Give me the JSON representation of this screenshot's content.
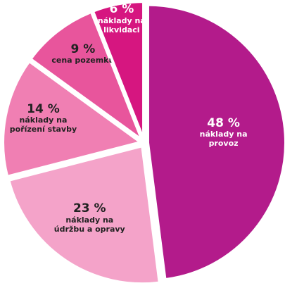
{
  "chart_data": {
    "type": "pie",
    "categories": [
      "náklady na provoz",
      "náklady na údržbu a opravy",
      "náklady na pořízení stavby",
      "cena pozemku",
      "náklady na likvidaci"
    ],
    "values": [
      48,
      23,
      14,
      9,
      6
    ],
    "value_labels": [
      "48 %",
      "23 %",
      "14 %",
      "9 %",
      "6 %"
    ],
    "colors": [
      "#b31b8b",
      "#f4a3c9",
      "#f07fb3",
      "#e8559c",
      "#d61680"
    ]
  }
}
